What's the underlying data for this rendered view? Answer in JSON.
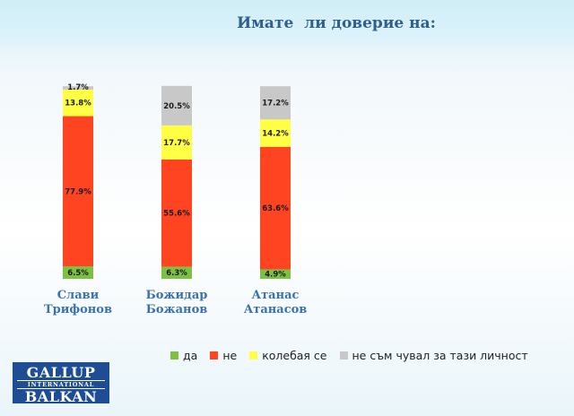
{
  "title": "Имате  ли доверие на:",
  "colors": {
    "da": "#7dc142",
    "ne": "#ff4422",
    "kolebaya": "#ffff44",
    "ne_cham": "#c8c8c8"
  },
  "legend": [
    {
      "label": "да",
      "color": "#7dc142"
    },
    {
      "label": "не",
      "color": "#ff4422"
    },
    {
      "label": "колебая се",
      "color": "#ffff44"
    },
    {
      "label": "не съм чувал за тази личност",
      "color": "#c8c8c8"
    }
  ],
  "logo": {
    "line1": "GALLUP",
    "line2": "INTERNATIONAL",
    "line3": "BALKAN"
  },
  "chart_data": {
    "type": "bar",
    "stacked": true,
    "percent": true,
    "title": "Имате  ли доверие на:",
    "categories": [
      [
        "Слави",
        "Трифонов"
      ],
      [
        "Божидар",
        "Божанов"
      ],
      [
        "Атанас",
        "Атанасов"
      ]
    ],
    "series": [
      {
        "name": "да",
        "color": "#7dc142",
        "values": [
          6.5,
          6.3,
          4.9
        ],
        "labels": [
          "6.5%",
          "6.3%",
          "4.9%"
        ]
      },
      {
        "name": "не",
        "color": "#ff4422",
        "values": [
          77.9,
          55.6,
          63.6
        ],
        "labels": [
          "77.9%",
          "55.6%",
          "63.6%"
        ]
      },
      {
        "name": "колебая се",
        "color": "#ffff44",
        "values": [
          13.8,
          17.7,
          14.2
        ],
        "labels": [
          "13.8%",
          "17.7%",
          "14.2%"
        ]
      },
      {
        "name": "не съм чувал за тази личност",
        "color": "#c8c8c8",
        "values": [
          1.7,
          20.5,
          17.2
        ],
        "labels": [
          "1.7%",
          "20.5%",
          "17.2%"
        ]
      }
    ],
    "ylim": [
      0,
      100
    ],
    "legend_position": "bottom"
  }
}
